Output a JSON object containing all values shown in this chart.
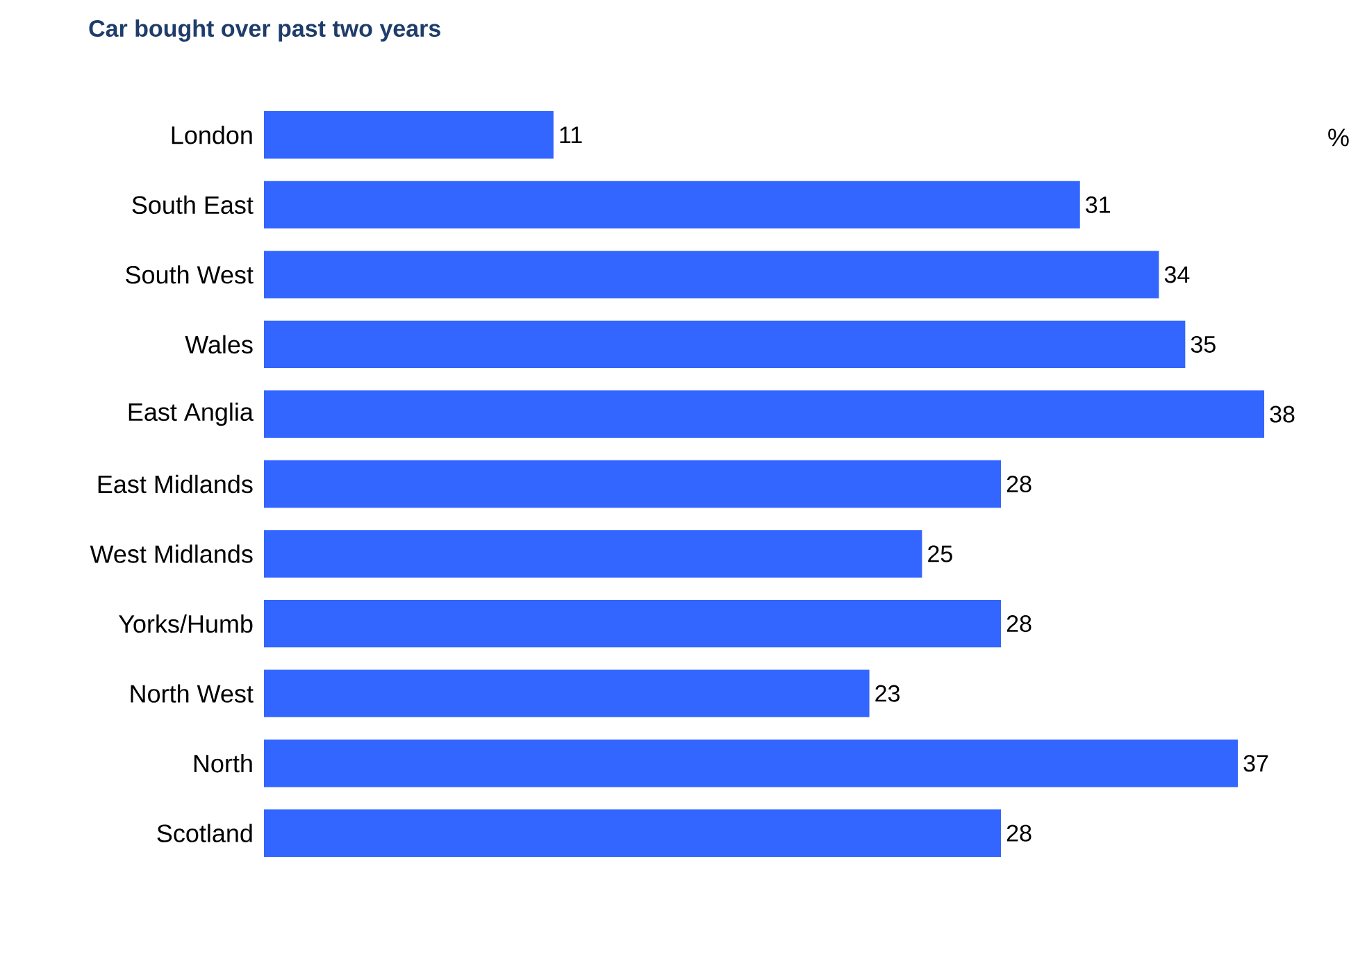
{
  "chart_data": {
    "type": "bar",
    "orientation": "horizontal",
    "title": "Car bought over past two years",
    "categories": [
      "London",
      "South East",
      "South West",
      "Wales",
      "East Anglia",
      "East Midlands",
      "West Midlands",
      "Yorks/Humb",
      "North West",
      "North",
      "Scotland"
    ],
    "values": [
      11,
      31,
      34,
      35,
      38,
      28,
      25,
      28,
      23,
      37,
      28
    ],
    "color": "#3366ff",
    "data_labels": true,
    "annotations": [
      "%"
    ]
  }
}
